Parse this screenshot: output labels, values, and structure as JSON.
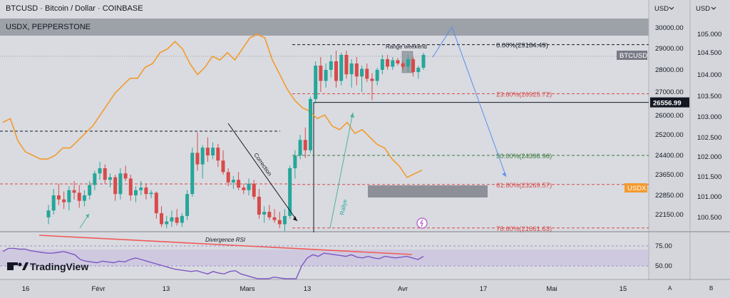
{
  "header": {
    "symbol_title": "BTCUSD · Bitcoin / Dollar · COINBASE",
    "overlay_title": "USDX, PEPPERSTONE",
    "axis_unit_left": "USD",
    "axis_unit_right": "USD",
    "axis_button_a": "A",
    "axis_button_b": "B"
  },
  "brand": {
    "name": "TradingView"
  },
  "chart_data": {
    "type": "candlestick",
    "price_axis_btc": {
      "ticks": [
        "30000.00",
        "29000.00",
        "28000.00",
        "27000.00",
        "26000.00",
        "25200.00",
        "24400.00",
        "23650.00",
        "22850.00",
        "22150.00"
      ]
    },
    "price_axis_usdx": {
      "ticks": [
        "105.000",
        "104.500",
        "104.000",
        "103.500",
        "103.000",
        "102.500",
        "102.000",
        "101.500",
        "101.000",
        "100.500"
      ]
    },
    "rsi_axis": {
      "ticks": [
        "75.00",
        "50.00"
      ]
    },
    "x_axis_ticks": [
      "16",
      "Févr",
      "13",
      "Mars",
      "13",
      "Avr",
      "17",
      "Mai",
      "15"
    ],
    "current_price": {
      "label": "BTCUSD",
      "value": "26556.99"
    },
    "usdx_badge": "USDX",
    "fibonacci": [
      {
        "level": "0.00%",
        "price": "29184.49",
        "label": "0.00%(29184.49)",
        "color": "#131722"
      },
      {
        "level": "23.60%",
        "price": "26925.72",
        "label": "23.60%(26925.72)",
        "color": "#d84a4a"
      },
      {
        "level": "50.00%",
        "price": "24398.96",
        "label": "50.00%(24398.96)",
        "color": "#3a7a3a"
      },
      {
        "level": "61.80%",
        "price": "23269.57",
        "label": "61.80%(23269.57)",
        "color": "#d84a4a"
      },
      {
        "level": "78.60%",
        "price": "21661.63",
        "label": "78.60%(21661.63)",
        "color": "#d84a4a"
      }
    ],
    "annotations": {
      "correction": "Correction",
      "rally": "Rallye",
      "range_weekend": "Range weekend",
      "rsi_divergence": "Divergence RSI"
    },
    "candles": [
      {
        "o": 22050,
        "h": 22500,
        "l": 21800,
        "c": 22300
      },
      {
        "o": 22300,
        "h": 23100,
        "l": 22150,
        "c": 22850
      },
      {
        "o": 22850,
        "h": 23300,
        "l": 22500,
        "c": 22700
      },
      {
        "o": 22700,
        "h": 23000,
        "l": 22350,
        "c": 22600
      },
      {
        "o": 22600,
        "h": 23200,
        "l": 22300,
        "c": 23050
      },
      {
        "o": 23050,
        "h": 23400,
        "l": 22700,
        "c": 22950
      },
      {
        "o": 22950,
        "h": 23250,
        "l": 22400,
        "c": 22650
      },
      {
        "o": 22650,
        "h": 23050,
        "l": 22450,
        "c": 22850
      },
      {
        "o": 22850,
        "h": 23400,
        "l": 22700,
        "c": 23250
      },
      {
        "o": 23250,
        "h": 23800,
        "l": 23050,
        "c": 23700
      },
      {
        "o": 23700,
        "h": 24150,
        "l": 23450,
        "c": 23900
      },
      {
        "o": 23900,
        "h": 24050,
        "l": 23300,
        "c": 23450
      },
      {
        "o": 23450,
        "h": 23700,
        "l": 23150,
        "c": 23550
      },
      {
        "o": 23550,
        "h": 23650,
        "l": 22650,
        "c": 22900
      },
      {
        "o": 22900,
        "h": 23900,
        "l": 22700,
        "c": 23700
      },
      {
        "o": 23700,
        "h": 24000,
        "l": 23400,
        "c": 23500
      },
      {
        "o": 23500,
        "h": 23650,
        "l": 22650,
        "c": 22850
      },
      {
        "o": 22850,
        "h": 23200,
        "l": 22600,
        "c": 23050
      },
      {
        "o": 23050,
        "h": 23400,
        "l": 22850,
        "c": 23150
      },
      {
        "o": 23150,
        "h": 23300,
        "l": 22700,
        "c": 22900
      },
      {
        "o": 22900,
        "h": 23050,
        "l": 22750,
        "c": 22950
      },
      {
        "o": 22950,
        "h": 23000,
        "l": 22000,
        "c": 22200
      },
      {
        "o": 22200,
        "h": 22450,
        "l": 21700,
        "c": 21800
      },
      {
        "o": 21800,
        "h": 22100,
        "l": 21650,
        "c": 21900
      },
      {
        "o": 21900,
        "h": 22300,
        "l": 21700,
        "c": 22050
      },
      {
        "o": 22050,
        "h": 22350,
        "l": 21750,
        "c": 21850
      },
      {
        "o": 21850,
        "h": 22200,
        "l": 21700,
        "c": 22100
      },
      {
        "o": 22100,
        "h": 23050,
        "l": 21950,
        "c": 22900
      },
      {
        "o": 22900,
        "h": 24700,
        "l": 22800,
        "c": 24500
      },
      {
        "o": 24500,
        "h": 25300,
        "l": 23800,
        "c": 24050
      },
      {
        "o": 24050,
        "h": 24800,
        "l": 23500,
        "c": 24700
      },
      {
        "o": 24700,
        "h": 25100,
        "l": 24150,
        "c": 24400
      },
      {
        "o": 24400,
        "h": 24900,
        "l": 24250,
        "c": 24700
      },
      {
        "o": 24700,
        "h": 24850,
        "l": 23950,
        "c": 24200
      },
      {
        "o": 24200,
        "h": 24600,
        "l": 23650,
        "c": 23750
      },
      {
        "o": 23750,
        "h": 23900,
        "l": 23200,
        "c": 23350
      },
      {
        "o": 23350,
        "h": 23600,
        "l": 23100,
        "c": 23450
      },
      {
        "o": 23450,
        "h": 23750,
        "l": 23050,
        "c": 23150
      },
      {
        "o": 23150,
        "h": 23300,
        "l": 22900,
        "c": 23050
      },
      {
        "o": 23050,
        "h": 23500,
        "l": 22850,
        "c": 23300
      },
      {
        "o": 23300,
        "h": 23450,
        "l": 22700,
        "c": 22800
      },
      {
        "o": 22800,
        "h": 23100,
        "l": 22000,
        "c": 22150
      },
      {
        "o": 22150,
        "h": 22450,
        "l": 21850,
        "c": 22250
      },
      {
        "o": 22250,
        "h": 22500,
        "l": 21950,
        "c": 22050
      },
      {
        "o": 22050,
        "h": 22350,
        "l": 21850,
        "c": 21950
      },
      {
        "o": 21950,
        "h": 22250,
        "l": 21650,
        "c": 21800
      },
      {
        "o": 21800,
        "h": 22350,
        "l": 21550,
        "c": 22100
      },
      {
        "o": 22100,
        "h": 24000,
        "l": 22000,
        "c": 23900
      },
      {
        "o": 23900,
        "h": 24600,
        "l": 23500,
        "c": 24400
      },
      {
        "o": 24400,
        "h": 25200,
        "l": 24250,
        "c": 25000
      },
      {
        "o": 25000,
        "h": 25500,
        "l": 24300,
        "c": 24600
      },
      {
        "o": 24600,
        "h": 26800,
        "l": 24500,
        "c": 26700
      },
      {
        "o": 26700,
        "h": 28400,
        "l": 26500,
        "c": 28200
      },
      {
        "o": 28200,
        "h": 28600,
        "l": 27000,
        "c": 27500
      },
      {
        "o": 27500,
        "h": 28300,
        "l": 27200,
        "c": 28000
      },
      {
        "o": 28000,
        "h": 28700,
        "l": 27650,
        "c": 28400
      },
      {
        "o": 28400,
        "h": 28900,
        "l": 27200,
        "c": 27500
      },
      {
        "o": 27500,
        "h": 28800,
        "l": 27300,
        "c": 28700
      },
      {
        "o": 28700,
        "h": 28900,
        "l": 27600,
        "c": 27800
      },
      {
        "o": 27800,
        "h": 28500,
        "l": 27200,
        "c": 28300
      },
      {
        "o": 28300,
        "h": 28600,
        "l": 27300,
        "c": 27700
      },
      {
        "o": 27700,
        "h": 28200,
        "l": 27000,
        "c": 28050
      },
      {
        "o": 28050,
        "h": 28300,
        "l": 27450,
        "c": 27600
      },
      {
        "o": 27600,
        "h": 27850,
        "l": 26650,
        "c": 27500
      },
      {
        "o": 27500,
        "h": 28100,
        "l": 27300,
        "c": 28000
      },
      {
        "o": 28000,
        "h": 28700,
        "l": 27800,
        "c": 28500
      },
      {
        "o": 28500,
        "h": 28700,
        "l": 28000,
        "c": 28150
      },
      {
        "o": 28150,
        "h": 28600,
        "l": 28000,
        "c": 28450
      },
      {
        "o": 28450,
        "h": 28550,
        "l": 28200,
        "c": 28300
      },
      {
        "o": 28300,
        "h": 28400,
        "l": 28000,
        "c": 28150
      },
      {
        "o": 28150,
        "h": 28700,
        "l": 27900,
        "c": 28500
      },
      {
        "o": 28500,
        "h": 28600,
        "l": 27700,
        "c": 27900
      },
      {
        "o": 27900,
        "h": 28200,
        "l": 27600,
        "c": 28100
      },
      {
        "o": 28100,
        "h": 28800,
        "l": 28000,
        "c": 28700
      }
    ],
    "usdx_line": [
      102.6,
      102.7,
      102.1,
      101.8,
      101.7,
      101.6,
      101.6,
      101.7,
      101.9,
      101.9,
      102.1,
      102.3,
      102.5,
      102.8,
      103.1,
      103.4,
      103.6,
      103.8,
      103.8,
      104.1,
      104.2,
      104.5,
      104.6,
      104.8,
      104.6,
      104.2,
      103.9,
      104.1,
      104.4,
      104.3,
      104.5,
      104.3,
      104.6,
      104.9,
      105.0,
      104.9,
      104.3,
      103.9,
      103.5,
      103.2,
      103.0,
      102.9,
      102.7,
      102.8,
      102.5,
      102.4,
      102.6,
      102.3,
      102.4,
      102.2,
      102.0,
      101.9,
      101.6,
      101.4,
      101.1,
      101.2,
      101.3
    ],
    "rsi_line": [
      68,
      72,
      72,
      71,
      71,
      69,
      68,
      67,
      66,
      66,
      67,
      68,
      66,
      64,
      58,
      56,
      55,
      54,
      56,
      55,
      54,
      56,
      55,
      58,
      60,
      58,
      56,
      54,
      52,
      50,
      48,
      46,
      45,
      44,
      43,
      44,
      42,
      40,
      43,
      41,
      40,
      43,
      44,
      40,
      38,
      36,
      34,
      33,
      34,
      36,
      35,
      32,
      25,
      20,
      50,
      60,
      64,
      62,
      66,
      65,
      64,
      63,
      62,
      64,
      61,
      60,
      62,
      60,
      59,
      62,
      61,
      60,
      61,
      62,
      60,
      58,
      62
    ]
  }
}
